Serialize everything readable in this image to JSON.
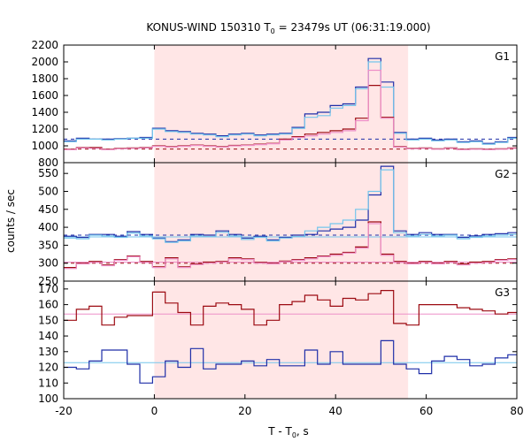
{
  "chart_data": {
    "type": "line",
    "title": "KONUS-WIND 150310 T",
    "title_sub": "0",
    "title_rest": " = 23479s UT (06:31:19.000)",
    "xlabel": "T - T",
    "xlabel_sub": "0",
    "xlabel_rest": ", s",
    "ylabel": "counts / sec",
    "xlim": [
      -20,
      80
    ],
    "x_ticks": [
      "-20",
      "0",
      "20",
      "40",
      "60",
      "80"
    ],
    "shaded_interval": [
      0,
      56
    ],
    "colors": {
      "blue": "#1f2fa8",
      "lightblue": "#74c5ec",
      "red": "#9c0b12",
      "pink": "#ee8fc8",
      "shade": "#ffe6e6"
    },
    "bin_edges": [
      -20,
      -17.2,
      -14.4,
      -11.6,
      -8.8,
      -6,
      -3.2,
      -0.4,
      2.4,
      5.2,
      8,
      10.8,
      13.6,
      16.4,
      19.2,
      22,
      24.8,
      27.6,
      30.4,
      33.2,
      36,
      38.8,
      41.6,
      44.4,
      47.2,
      50,
      52.8,
      55.6,
      58.4,
      61.2,
      64,
      66.8,
      69.6,
      72.4,
      75.2,
      78,
      80
    ],
    "panels": [
      {
        "label": "G1",
        "ylim": [
          800,
          2200
        ],
        "y_ticks": [
          "800",
          "1000",
          "1200",
          "1400",
          "1600",
          "1800",
          "2000",
          "2200"
        ],
        "series": [
          {
            "color": "blue",
            "values": [
              1060,
              1090,
              1080,
              1080,
              1085,
              1090,
              1100,
              1210,
              1180,
              1170,
              1150,
              1140,
              1120,
              1140,
              1150,
              1130,
              1140,
              1150,
              1220,
              1380,
              1400,
              1480,
              1500,
              1700,
              2040,
              1760,
              1160,
              1080,
              1090,
              1070,
              1080,
              1050,
              1060,
              1030,
              1050,
              1100
            ]
          },
          {
            "color": "lightblue",
            "values": [
              1050,
              1080,
              1080,
              1070,
              1080,
              1090,
              1090,
              1200,
              1170,
              1160,
              1140,
              1130,
              1110,
              1130,
              1140,
              1120,
              1130,
              1140,
              1210,
              1340,
              1360,
              1450,
              1480,
              1680,
              2000,
              1700,
              1150,
              1070,
              1080,
              1060,
              1070,
              1040,
              1050,
              1020,
              1040,
              1090
            ]
          },
          {
            "color": "red",
            "values": [
              960,
              980,
              980,
              960,
              970,
              975,
              980,
              1000,
              990,
              1000,
              1010,
              1000,
              990,
              1005,
              1010,
              1020,
              1030,
              1080,
              1110,
              1140,
              1160,
              1180,
              1200,
              1330,
              1720,
              1340,
              990,
              970,
              975,
              965,
              975,
              960,
              965,
              960,
              965,
              975
            ]
          },
          {
            "color": "pink",
            "values": [
              955,
              975,
              970,
              955,
              965,
              970,
              975,
              995,
              985,
              995,
              1005,
              995,
              985,
              1000,
              1005,
              1015,
              1025,
              1070,
              1100,
              1120,
              1140,
              1160,
              1180,
              1300,
              1900,
              1330,
              985,
              965,
              970,
              960,
              970,
              955,
              960,
              955,
              960,
              970
            ]
          }
        ],
        "baselines": [
          {
            "color": "blue",
            "value": 1080,
            "dashed": true
          },
          {
            "color": "red",
            "value": 962,
            "dashed": true
          }
        ]
      },
      {
        "label": "G2",
        "ylim": [
          250,
          580
        ],
        "y_ticks": [
          "250",
          "300",
          "350",
          "400",
          "450",
          "500",
          "550"
        ],
        "series": [
          {
            "color": "blue",
            "values": [
              375,
              372,
              380,
              380,
              375,
              388,
              380,
              370,
              360,
              365,
              380,
              378,
              390,
              380,
              370,
              375,
              365,
              372,
              378,
              380,
              390,
              395,
              400,
              420,
              490,
              570,
              390,
              380,
              385,
              380,
              380,
              372,
              376,
              380,
              382,
              385
            ]
          },
          {
            "color": "lightblue",
            "values": [
              370,
              368,
              378,
              376,
              372,
              384,
              376,
              368,
              358,
              362,
              376,
              374,
              386,
              376,
              366,
              372,
              362,
              370,
              374,
              390,
              400,
              410,
              420,
              450,
              500,
              560,
              385,
              376,
              380,
              376,
              378,
              368,
              372,
              376,
              378,
              380
            ]
          },
          {
            "color": "red",
            "values": [
              288,
              300,
              305,
              295,
              310,
              320,
              305,
              290,
              315,
              290,
              298,
              303,
              305,
              315,
              312,
              302,
              300,
              306,
              310,
              315,
              320,
              325,
              330,
              345,
              415,
              325,
              305,
              300,
              305,
              300,
              305,
              298,
              303,
              305,
              310,
              312
            ]
          },
          {
            "color": "pink",
            "values": [
              285,
              298,
              302,
              293,
              308,
              318,
              302,
              288,
              312,
              288,
              296,
              300,
              303,
              312,
              310,
              300,
              298,
              304,
              308,
              312,
              318,
              322,
              328,
              342,
              410,
              322,
              302,
              298,
              302,
              298,
              302,
              295,
              300,
              302,
              308,
              310
            ]
          }
        ],
        "baselines": [
          {
            "color": "lightblue",
            "value": 373,
            "dashed": false
          },
          {
            "color": "blue",
            "value": 378,
            "dashed": true
          },
          {
            "color": "pink",
            "value": 303,
            "dashed": false
          },
          {
            "color": "red",
            "value": 300,
            "dashed": true
          }
        ]
      },
      {
        "label": "G3",
        "ylim": [
          100,
          175
        ],
        "y_ticks": [
          "100",
          "110",
          "120",
          "130",
          "140",
          "150",
          "160",
          "170"
        ],
        "series": [
          {
            "color": "red",
            "values": [
              150,
              157,
              159,
              147,
              152,
              153,
              153,
              168,
              161,
              155,
              147,
              159,
              161,
              160,
              157,
              147,
              150,
              160,
              162,
              166,
              163,
              159,
              164,
              163,
              167,
              169,
              148,
              147,
              160,
              160,
              160,
              158,
              157,
              156,
              154,
              155
            ]
          },
          {
            "color": "blue",
            "values": [
              120,
              119,
              124,
              131,
              131,
              122,
              110,
              114,
              124,
              120,
              132,
              119,
              122,
              122,
              124,
              121,
              125,
              121,
              121,
              131,
              122,
              130,
              122,
              122,
              122,
              137,
              122,
              119,
              116,
              124,
              127,
              125,
              121,
              122,
              126,
              128
            ]
          }
        ],
        "baselines": [
          {
            "color": "pink",
            "value": 154,
            "dashed": false
          },
          {
            "color": "lightblue",
            "value": 123,
            "dashed": false
          }
        ]
      }
    ]
  }
}
